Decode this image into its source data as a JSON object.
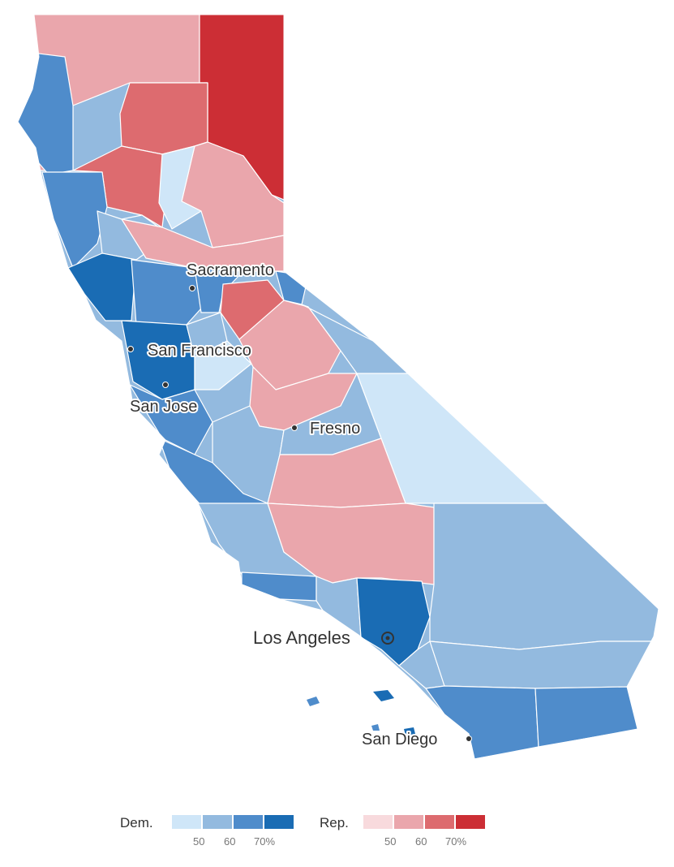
{
  "map": {
    "cities": [
      {
        "name": "Sacramento"
      },
      {
        "name": "San Francisco"
      },
      {
        "name": "San Jose"
      },
      {
        "name": "Fresno"
      },
      {
        "name": "Los Angeles"
      },
      {
        "name": "San Diego"
      }
    ],
    "shading": [
      {
        "region": "far-north-east",
        "party": "Rep",
        "level": "70%+"
      },
      {
        "region": "north-center",
        "party": "Rep",
        "level": "60-70%"
      },
      {
        "region": "north-coast",
        "party": "Dem",
        "level": "60-70%"
      },
      {
        "region": "bay-area",
        "party": "Dem",
        "level": "70%+"
      },
      {
        "region": "central-valley",
        "party": "Rep",
        "level": "50-60%"
      },
      {
        "region": "inyo",
        "party": "Dem",
        "level": "<50%"
      },
      {
        "region": "los-angeles",
        "party": "Dem",
        "level": "70%+"
      },
      {
        "region": "san-bernardino",
        "party": "Dem",
        "level": "50-60%"
      },
      {
        "region": "san-diego",
        "party": "Dem",
        "level": "60-70%"
      }
    ]
  },
  "legend": {
    "dem_label": "Dem.",
    "rep_label": "Rep.",
    "dem_ticks": [
      "50",
      "60",
      "70%"
    ],
    "rep_ticks": [
      "50",
      "60",
      "70%"
    ],
    "dem_colors": [
      "#cfe6f8",
      "#93badf",
      "#4f8ccb",
      "#1a6cb4"
    ],
    "rep_colors": [
      "#f8dadd",
      "#eaa6ac",
      "#dd6b6f",
      "#cc2e35"
    ]
  }
}
